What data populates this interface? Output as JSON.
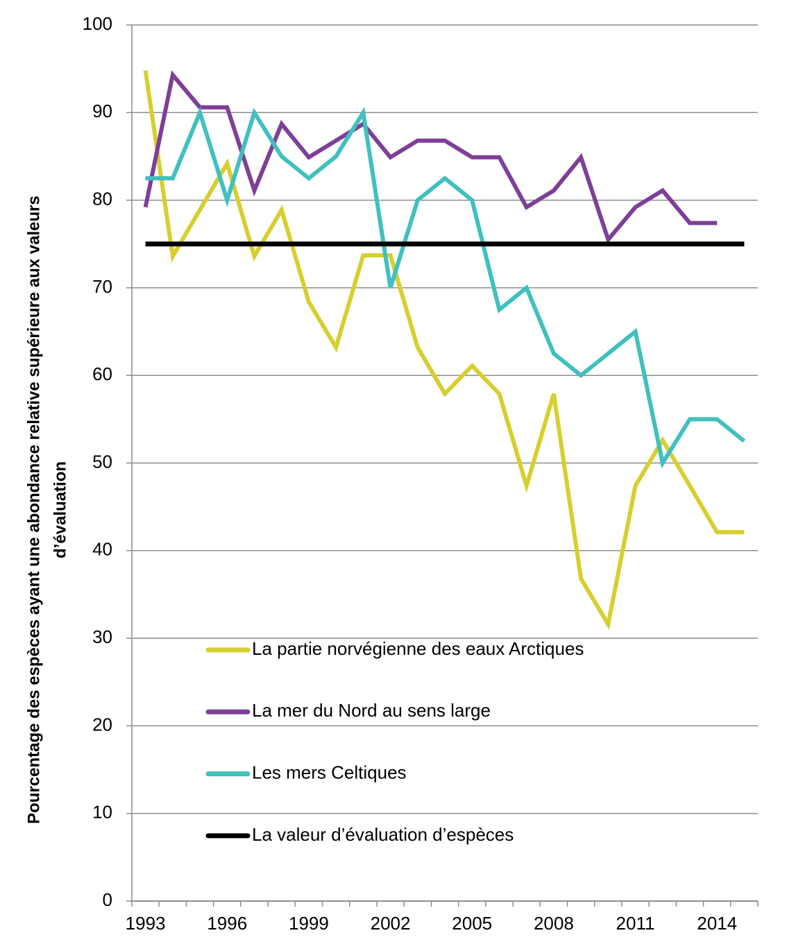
{
  "chart_data": {
    "type": "line",
    "ylabel": [
      "Pourcentage des espèces ayant une abondance relative supérieure aux valeurs",
      "d’évaluation"
    ],
    "categories": [
      "1993",
      null,
      null,
      "1996",
      null,
      null,
      "1999",
      null,
      null,
      "2002",
      null,
      null,
      "2005",
      null,
      null,
      "2008",
      null,
      null,
      "2011",
      null,
      null,
      "2014",
      null
    ],
    "series": [
      {
        "name": "La partie norvégienne des eaux Arctiques",
        "color": "#d6cf2e",
        "values": [
          94.8,
          73.6,
          78.9,
          84.2,
          73.6,
          78.9,
          68.4,
          63.2,
          73.7,
          73.7,
          63.2,
          57.9,
          61.1,
          57.9,
          47.4,
          57.9,
          36.8,
          31.6,
          47.4,
          52.6,
          47.4,
          42.1,
          42.1
        ]
      },
      {
        "name": "La mer du Nord au sens large",
        "color": "#7d3f98",
        "values": [
          79.2,
          94.3,
          90.6,
          90.6,
          81.1,
          88.7,
          84.9,
          86.8,
          88.7,
          84.9,
          86.8,
          86.8,
          84.9,
          84.9,
          79.2,
          81.1,
          84.9,
          75.5,
          79.2,
          81.1,
          77.4,
          77.4,
          null
        ]
      },
      {
        "name": "Les mers Celtiques",
        "color": "#40c0bf",
        "values": [
          82.5,
          82.5,
          90,
          80,
          90,
          85,
          82.5,
          85,
          90,
          70,
          80,
          82.5,
          80,
          67.5,
          70,
          62.5,
          60,
          62.5,
          65,
          50,
          55,
          55,
          52.5
        ]
      },
      {
        "name": "La valeur d’évaluation d’espèces",
        "color": "#000000",
        "values": [
          75,
          75,
          75,
          75,
          75,
          75,
          75,
          75,
          75,
          75,
          75,
          75,
          75,
          75,
          75,
          75,
          75,
          75,
          75,
          75,
          75,
          75,
          75
        ]
      }
    ],
    "ylim": [
      0,
      100
    ],
    "yticks": [
      0,
      10,
      20,
      30,
      40,
      50,
      60,
      70,
      80,
      90,
      100
    ],
    "grid": true,
    "legend": "bottom-left"
  }
}
